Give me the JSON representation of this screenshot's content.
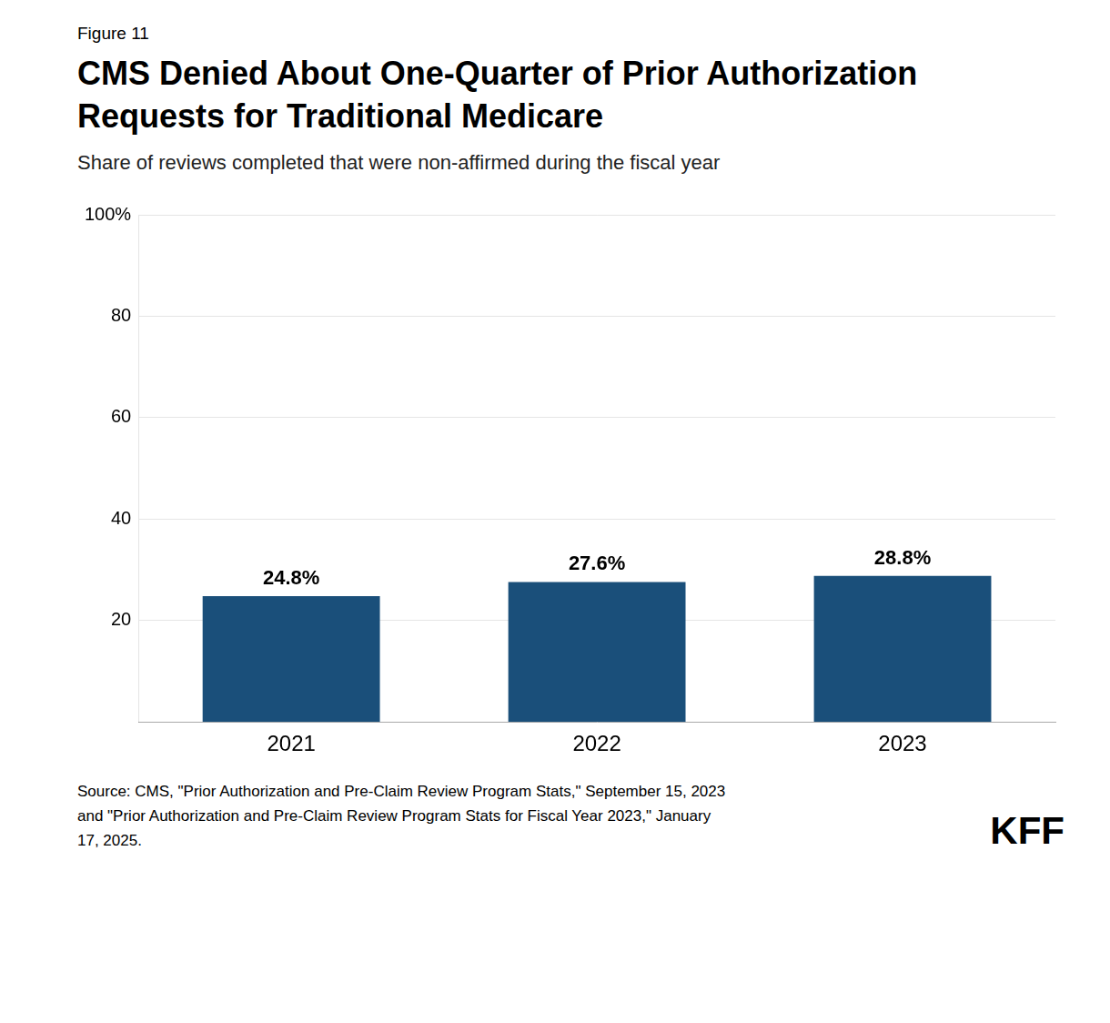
{
  "chart_data": {
    "type": "bar",
    "title": [
      "CMS Denied About One-Quarter of Prior Authorization",
      "Requests for Traditional Medicare"
    ],
    "subtitle": "Share of reviews completed that were non-affirmed during the fiscal year",
    "annotations": [
      "Figure 11",
      "Source: CMS, \"Prior Authorization and Pre-Claim Review Program Stats,\" September 15, 2023\nand \"Prior Authorization and Pre-Claim Review Program Stats for Fiscal Year 2023,\" January\n17, 2025.",
      "KFF"
    ],
    "categories": [
      "2021",
      "2022",
      "2023"
    ],
    "values": [
      24.8,
      27.6,
      28.8
    ],
    "value_labels": [
      "24.8%",
      "27.6%",
      "28.8%"
    ],
    "data_labels": true,
    "color": "#1a4f7a",
    "ylim": [
      0,
      100
    ],
    "yticks": [
      20,
      40,
      60,
      80,
      {
        "value": 100,
        "label": "100%"
      }
    ],
    "grid": true
  }
}
